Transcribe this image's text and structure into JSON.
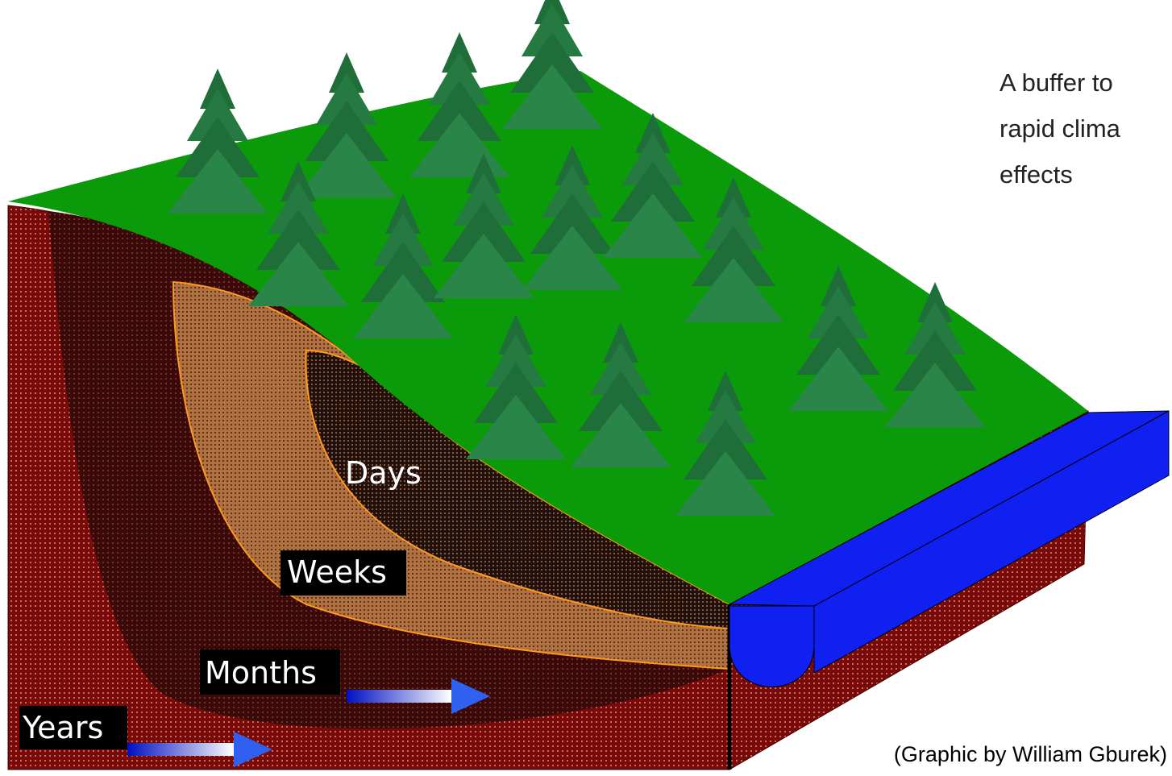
{
  "caption": {
    "lines": [
      "A buffer to",
      "rapid clima",
      "effects"
    ]
  },
  "layers": {
    "days": "Days",
    "weeks": "Weeks",
    "months": "Months",
    "years": "Years"
  },
  "credit": "(Graphic by William Gburek)"
}
